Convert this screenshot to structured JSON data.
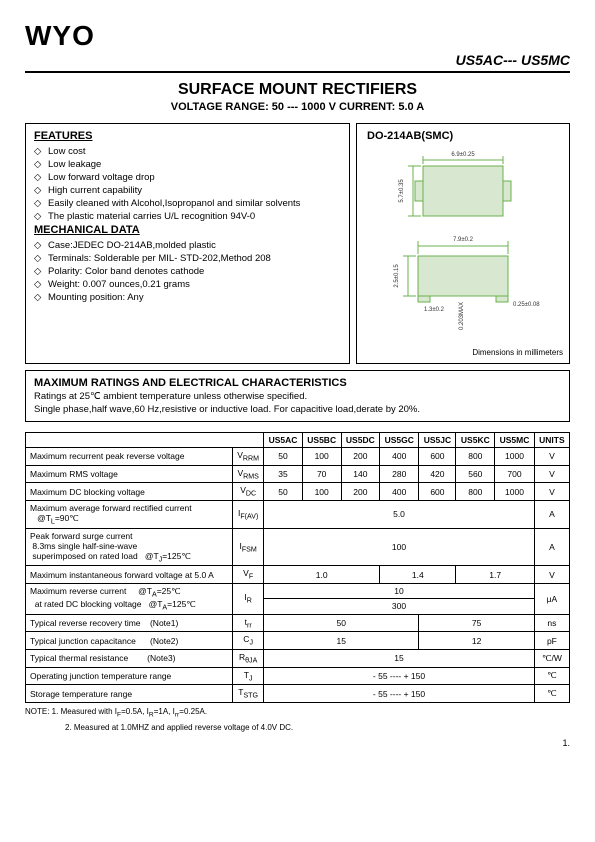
{
  "logo": "WYO",
  "product_code": "US5AC--- US5MC",
  "title": "SURFACE MOUNT RECTIFIERS",
  "subtitle": "VOLTAGE  RANGE:  50 --- 1000 V   CURRENT:   5.0 A",
  "features_heading": "FEATURES",
  "features": [
    "Low cost",
    "Low leakage",
    "Low forward voltage drop",
    "High current capability",
    "Easily cleaned with Alcohol,Isopropanol and similar solvents",
    "The plastic material carries U/L  recognition 94V-0"
  ],
  "mechanical_heading": "MECHANICAL DATA",
  "mechanical": [
    "Case:JEDEC DO-214AB,molded plastic",
    "Terminals: Solderable per MIL- STD-202,Method 208",
    "Polarity: Color band denotes cathode",
    "Weight: 0.007 ounces,0.21 grams",
    "Mounting position: Any"
  ],
  "package_name": "DO-214AB(SMC)",
  "dim_note": "Dimensions in millimeters",
  "ratings_heading": "MAXIMUM RATINGS AND ELECTRICAL CHARACTERISTICS",
  "ratings_note1": "Ratings at 25℃  ambient temperature unless otherwise specified.",
  "ratings_note2": "Single phase,half wave,60 Hz,resistive or inductive load. For capacitive load,derate by 20%.",
  "columns": [
    "US5AC",
    "US5BC",
    "US5DC",
    "US5GC",
    "US5JC",
    "US5KC",
    "US5MC",
    "UNITS"
  ],
  "rows": [
    {
      "param": "Maximum recurrent peak reverse voltage",
      "sym": "V<sub>RRM</sub>",
      "vals": [
        "50",
        "100",
        "200",
        "400",
        "600",
        "800",
        "1000"
      ],
      "unit": "V"
    },
    {
      "param": "Maximum RMS voltage",
      "sym": "V<sub>RMS</sub>",
      "vals": [
        "35",
        "70",
        "140",
        "280",
        "420",
        "560",
        "700"
      ],
      "unit": "V"
    },
    {
      "param": "Maximum DC blocking voltage",
      "sym": "V<sub>DC</sub>",
      "vals": [
        "50",
        "100",
        "200",
        "400",
        "600",
        "800",
        "1000"
      ],
      "unit": "V"
    }
  ],
  "merged_rows": [
    {
      "param": "Maximum average forward rectified current<br>&nbsp;&nbsp;&nbsp;@T<sub>L</sub>=90℃",
      "sym": "I<sub>F(AV)</sub>",
      "span": "5.0",
      "unit": "A"
    },
    {
      "param": "Peak forward surge current<br>&nbsp;8.3ms single half-sine-wave<br>&nbsp;superimposed on rated load&nbsp;&nbsp;&nbsp;@T<sub>J</sub>=125℃",
      "sym": "I<sub>FSM</sub>",
      "span": "100",
      "unit": "A"
    }
  ],
  "vf_row": {
    "param": "Maximum instantaneous forward voltage at  5.0 A",
    "sym": "V<sub>F</sub>",
    "vals": [
      "1.0",
      "1.4",
      "1.7"
    ],
    "unit": "V"
  },
  "ir_row": {
    "param": "Maximum reverse current&nbsp;&nbsp;&nbsp;&nbsp;&nbsp;@T<sub>A</sub>=25℃<br>&nbsp;&nbsp;at rated DC blocking  voltage&nbsp;&nbsp;&nbsp;@T<sub>A</sub>=125℃",
    "sym": "I<sub>R</sub>",
    "vals": [
      "10",
      "300"
    ],
    "unit": "μA"
  },
  "trr_row": {
    "param": "Typical  reverse recovery time&nbsp;&nbsp;&nbsp;&nbsp;(Note1)",
    "sym": "t<sub>rr</sub>",
    "vals": [
      "50",
      "75"
    ],
    "unit": "ns"
  },
  "cj_row": {
    "param": "Typical  junction  capacitance&nbsp;&nbsp;&nbsp;&nbsp;&nbsp;&nbsp;(Note2)",
    "sym": "C<sub>J</sub>",
    "vals": [
      "15",
      "12"
    ],
    "unit": "pF"
  },
  "rth_row": {
    "param": "Typical  thermal  resistance&nbsp;&nbsp;&nbsp;&nbsp;&nbsp;&nbsp;&nbsp;&nbsp;(Note3)",
    "sym": "R<sub>θJA</sub>",
    "span": "15",
    "unit": "℃/W"
  },
  "tj_row": {
    "param": "Operating junction temperature range",
    "sym": "T<sub>J</sub>",
    "span": "- 55 ---- + 150",
    "unit": "℃"
  },
  "tstg_row": {
    "param": "Storage temperature range",
    "sym": "T<sub>STG</sub>",
    "span": "- 55 ---- + 150",
    "unit": "℃"
  },
  "note1": "NOTE:  1. Measured with I<sub>F</sub>=0.5A, I<sub>R</sub>=1A, I<sub>rr</sub>=0.25A.",
  "note2": "2. Measured at 1.0MHZ and applied reverse voltage of 4.0V DC.",
  "page_num": "1.",
  "svg_dims": {
    "top_w": "6.9±0.25",
    "top_h": "5.7±0.35",
    "bot_w": "7.9±0.2",
    "pad_h": "2.5±0.15",
    "pad_w": "1.3±0.2",
    "thick": "0.203MAX",
    "tab": "0.25±0.08"
  }
}
